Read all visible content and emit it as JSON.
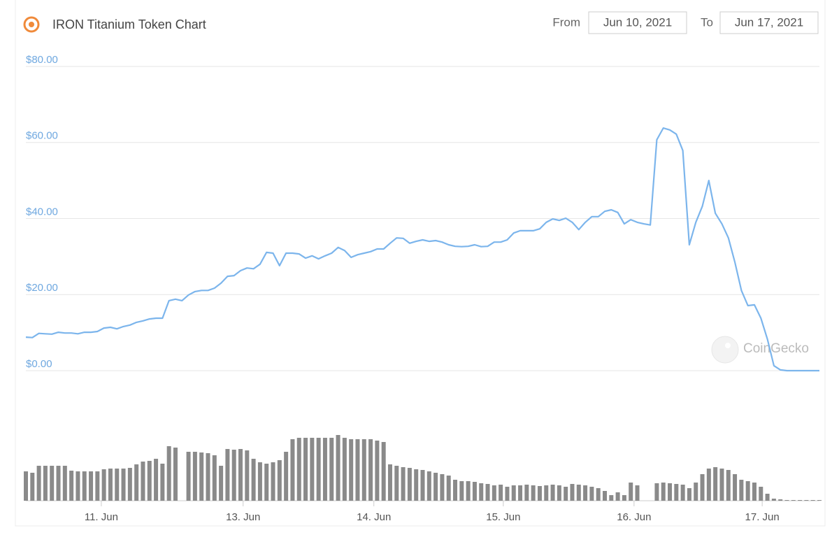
{
  "chart_data": {
    "type": "line",
    "title": "IRON Titanium Token Chart",
    "from_label": "From",
    "from_date": "Jun 10, 2021",
    "to_label": "To",
    "to_date": "Jun 17, 2021",
    "watermark": "CoinGecko",
    "color": "#7cb5ec",
    "volume_color": "#8a8a8a",
    "grid": true,
    "ylim": [
      0,
      80
    ],
    "yticks": [
      {
        "value": 0,
        "label": "$0.00"
      },
      {
        "value": 20,
        "label": "$20.00"
      },
      {
        "value": 40,
        "label": "$40.00"
      },
      {
        "value": 60,
        "label": "$60.00"
      },
      {
        "value": 80,
        "label": "$80.00"
      }
    ],
    "xticks": [
      {
        "value": 11.6,
        "label": "11. Jun"
      },
      {
        "value": 33.4,
        "label": "13. Jun"
      },
      {
        "value": 53.5,
        "label": "14. Jun"
      },
      {
        "value": 73.4,
        "label": "15. Jun"
      },
      {
        "value": 93.5,
        "label": "16. Jun"
      },
      {
        "value": 113.2,
        "label": "17. Jun"
      }
    ],
    "values": [
      8.8,
      8.7,
      9.8,
      9.7,
      9.6,
      10.1,
      9.9,
      9.9,
      9.7,
      10.1,
      10.1,
      10.3,
      11.2,
      11.4,
      11.0,
      11.6,
      12.0,
      12.7,
      13.1,
      13.6,
      13.8,
      13.8,
      18.4,
      18.8,
      18.4,
      19.9,
      20.8,
      21.1,
      21.1,
      21.7,
      23.0,
      24.8,
      25.0,
      26.3,
      27.0,
      26.8,
      28.0,
      31.1,
      30.9,
      27.6,
      30.9,
      30.9,
      30.7,
      29.6,
      30.2,
      29.4,
      30.2,
      30.9,
      32.4,
      31.6,
      29.8,
      30.5,
      30.9,
      31.3,
      32.0,
      32.0,
      33.5,
      34.9,
      34.8,
      33.5,
      34.0,
      34.4,
      34.0,
      34.2,
      33.8,
      33.1,
      32.7,
      32.6,
      32.7,
      33.1,
      32.6,
      32.7,
      33.8,
      33.8,
      34.4,
      36.2,
      36.8,
      36.8,
      36.8,
      37.3,
      39.0,
      39.9,
      39.5,
      40.1,
      39.0,
      37.1,
      39.0,
      40.5,
      40.5,
      41.9,
      42.3,
      41.6,
      38.6,
      39.7,
      39.0,
      38.6,
      38.3,
      60.7,
      63.8,
      63.3,
      62.2,
      57.9,
      33.1,
      39.0,
      43.2,
      50.0,
      41.4,
      38.6,
      34.9,
      28.5,
      21.1,
      17.1,
      17.3,
      13.8,
      8.3,
      1.3,
      0.2,
      0,
      0,
      0,
      0,
      0,
      0
    ],
    "volumes": [
      42,
      40,
      50,
      50,
      50,
      50,
      50,
      43,
      42,
      42,
      42,
      42,
      45,
      46,
      46,
      46,
      47,
      52,
      56,
      57,
      60,
      53,
      78,
      76,
      0,
      70,
      70,
      69,
      68,
      65,
      50,
      74,
      73,
      74,
      72,
      60,
      55,
      53,
      55,
      58,
      70,
      88,
      90,
      90,
      90,
      90,
      90,
      90,
      94,
      90,
      88,
      88,
      88,
      88,
      86,
      84,
      52,
      50,
      48,
      47,
      45,
      44,
      42,
      40,
      38,
      36,
      30,
      28,
      28,
      27,
      25,
      24,
      22,
      23,
      20,
      22,
      22,
      23,
      22,
      21,
      22,
      23,
      22,
      20,
      24,
      23,
      22,
      20,
      18,
      14,
      8,
      12,
      8,
      26,
      22,
      0,
      0,
      25,
      26,
      25,
      24,
      23,
      18,
      26,
      38,
      46,
      48,
      46,
      44,
      38,
      30,
      28,
      26,
      20,
      10,
      3,
      2,
      1,
      1,
      1,
      1,
      1,
      1
    ]
  }
}
